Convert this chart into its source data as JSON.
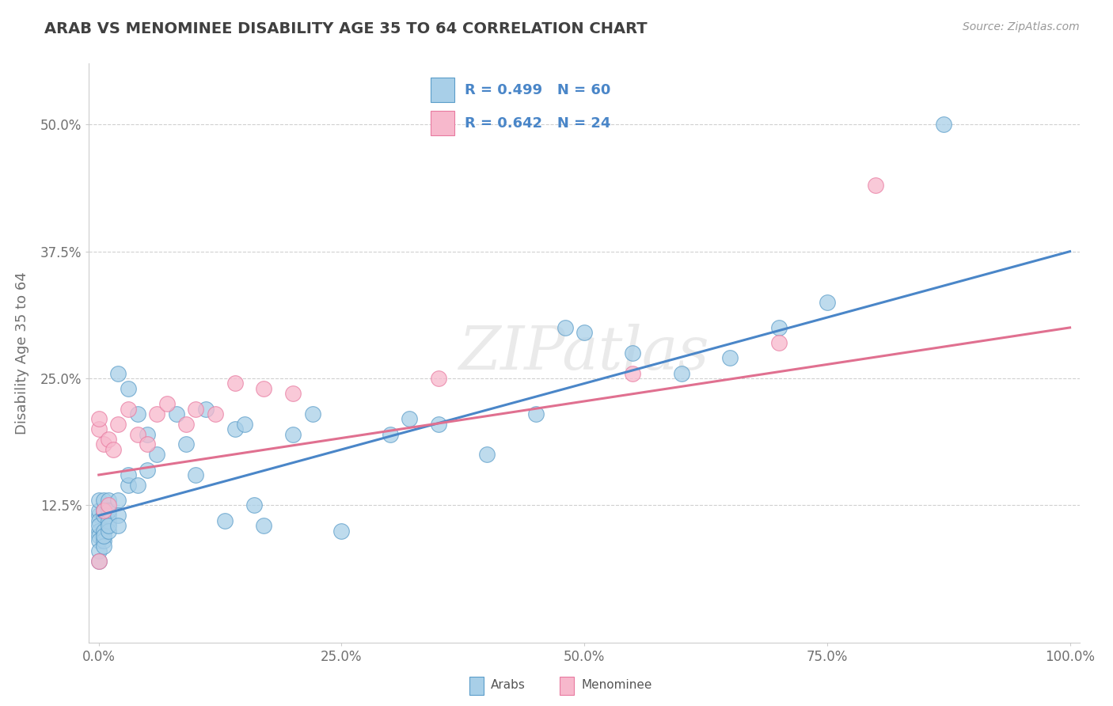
{
  "title": "ARAB VS MENOMINEE DISABILITY AGE 35 TO 64 CORRELATION CHART",
  "source": "Source: ZipAtlas.com",
  "ylabel": "Disability Age 35 to 64",
  "xlim": [
    -0.01,
    1.01
  ],
  "ylim": [
    -0.01,
    0.56
  ],
  "xticks": [
    0.0,
    0.25,
    0.5,
    0.75,
    1.0
  ],
  "xticklabels": [
    "0.0%",
    "25.0%",
    "50.0%",
    "75.0%",
    "100.0%"
  ],
  "yticks": [
    0.125,
    0.25,
    0.375,
    0.5
  ],
  "yticklabels": [
    "12.5%",
    "25.0%",
    "37.5%",
    "50.0%"
  ],
  "arab_color": "#a8cfe8",
  "arab_edge_color": "#5b9dc9",
  "menominee_color": "#f7b8cc",
  "menominee_edge_color": "#e87aa0",
  "arab_R": 0.499,
  "arab_N": 60,
  "menominee_R": 0.642,
  "menominee_N": 24,
  "arab_line_color": "#4a86c8",
  "menominee_line_color": "#e07090",
  "legend_text_color": "#4a86c8",
  "watermark": "ZIPatlas",
  "background_color": "#ffffff",
  "grid_color": "#d0d0d0",
  "title_color": "#404040",
  "axis_label_color": "#707070",
  "tick_label_color": "#707070",
  "arab_points_x": [
    0.0,
    0.0,
    0.0,
    0.0,
    0.0,
    0.0,
    0.0,
    0.0,
    0.0,
    0.0,
    0.005,
    0.005,
    0.005,
    0.005,
    0.005,
    0.005,
    0.005,
    0.01,
    0.01,
    0.01,
    0.01,
    0.01,
    0.01,
    0.02,
    0.02,
    0.02,
    0.02,
    0.03,
    0.03,
    0.03,
    0.04,
    0.04,
    0.05,
    0.05,
    0.06,
    0.08,
    0.09,
    0.1,
    0.11,
    0.13,
    0.14,
    0.15,
    0.16,
    0.17,
    0.2,
    0.22,
    0.25,
    0.3,
    0.32,
    0.35,
    0.4,
    0.45,
    0.48,
    0.5,
    0.55,
    0.6,
    0.65,
    0.7,
    0.75,
    0.87
  ],
  "arab_points_y": [
    0.115,
    0.12,
    0.13,
    0.11,
    0.1,
    0.095,
    0.105,
    0.09,
    0.08,
    0.07,
    0.115,
    0.12,
    0.13,
    0.1,
    0.09,
    0.085,
    0.095,
    0.115,
    0.13,
    0.11,
    0.1,
    0.12,
    0.105,
    0.13,
    0.115,
    0.105,
    0.255,
    0.145,
    0.155,
    0.24,
    0.145,
    0.215,
    0.195,
    0.16,
    0.175,
    0.215,
    0.185,
    0.155,
    0.22,
    0.11,
    0.2,
    0.205,
    0.125,
    0.105,
    0.195,
    0.215,
    0.1,
    0.195,
    0.21,
    0.205,
    0.175,
    0.215,
    0.3,
    0.295,
    0.275,
    0.255,
    0.27,
    0.3,
    0.325,
    0.5
  ],
  "menominee_points_x": [
    0.0,
    0.0,
    0.0,
    0.005,
    0.005,
    0.01,
    0.01,
    0.015,
    0.02,
    0.03,
    0.04,
    0.05,
    0.06,
    0.07,
    0.09,
    0.1,
    0.12,
    0.14,
    0.17,
    0.2,
    0.35,
    0.55,
    0.7,
    0.8
  ],
  "menominee_points_y": [
    0.07,
    0.2,
    0.21,
    0.185,
    0.12,
    0.19,
    0.125,
    0.18,
    0.205,
    0.22,
    0.195,
    0.185,
    0.215,
    0.225,
    0.205,
    0.22,
    0.215,
    0.245,
    0.24,
    0.235,
    0.25,
    0.255,
    0.285,
    0.44
  ],
  "arab_line_x": [
    0.0,
    1.0
  ],
  "arab_line_y": [
    0.115,
    0.375
  ],
  "menominee_line_x": [
    0.0,
    1.0
  ],
  "menominee_line_y": [
    0.155,
    0.3
  ]
}
